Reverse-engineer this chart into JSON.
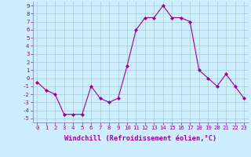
{
  "x": [
    0,
    1,
    2,
    3,
    4,
    5,
    6,
    7,
    8,
    9,
    10,
    11,
    12,
    13,
    14,
    15,
    16,
    17,
    18,
    19,
    20,
    21,
    22,
    23
  ],
  "y": [
    -0.5,
    -1.5,
    -2.0,
    -4.5,
    -4.5,
    -4.5,
    -1.0,
    -2.5,
    -3.0,
    -2.5,
    1.5,
    6.0,
    7.5,
    7.5,
    9.0,
    7.5,
    7.5,
    7.0,
    1.0,
    0.0,
    -1.0,
    0.5,
    -1.0,
    -2.5
  ],
  "line_color": "#990099",
  "marker": "D",
  "marker_size": 2.0,
  "bg_color": "#cceeff",
  "grid_color": "#aacccc",
  "xlabel": "Windchill (Refroidissement éolien,°C)",
  "ylim": [
    -5.5,
    9.5
  ],
  "xlim": [
    -0.5,
    23.5
  ],
  "tick_fontsize": 5.2,
  "xlabel_fontsize": 6.2
}
